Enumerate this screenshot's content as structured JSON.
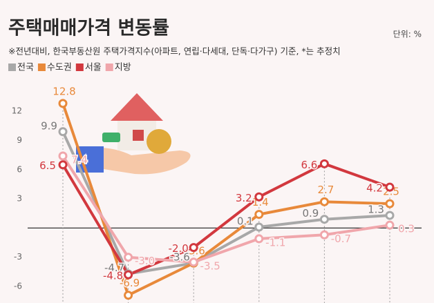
{
  "chart_data": {
    "type": "line",
    "title": "주택매매가격 변동률",
    "unit": "단위: %",
    "subtitle": "※전년대비, 한국부동산원 주택가격지수(아파트, 연립·다세대, 단독·다가구) 기준, *는 추정치",
    "categories": [
      null,
      null,
      null,
      null,
      null,
      null
    ],
    "series": [
      {
        "name": "전국",
        "color": "#a8a8a8",
        "values": [
          9.9,
          -4.7,
          -3.6,
          0.1,
          0.9,
          1.3
        ],
        "value_labels": [
          "9.9",
          "-4.7",
          "-3.6",
          "0.1",
          "0.9",
          "1.3"
        ]
      },
      {
        "name": "수도권",
        "color": "#e8893a",
        "values": [
          12.8,
          -6.9,
          -3.6,
          1.4,
          2.7,
          2.5
        ],
        "value_labels": [
          "12.8",
          "-6.9",
          "-3.6",
          "1.4",
          "2.7",
          "2.5"
        ]
      },
      {
        "name": "서울",
        "color": "#d2383e",
        "values": [
          6.5,
          -4.8,
          -2.0,
          3.2,
          6.6,
          4.2
        ],
        "value_labels": [
          "6.5",
          "-4.8",
          "-2.0",
          "3.2",
          "6.6",
          "4.2"
        ]
      },
      {
        "name": "지방",
        "color": "#f0a6ab",
        "values": [
          7.4,
          -3.0,
          -3.5,
          -1.1,
          -0.7,
          0.3
        ],
        "value_labels": [
          "7.4",
          "-3.0",
          "-3.5",
          "-1.1",
          "-0.7",
          "0.3"
        ]
      }
    ],
    "ylim": [
      -7.7,
      13.5
    ],
    "yticks": [
      -6,
      -3,
      3,
      6,
      9,
      12
    ]
  }
}
